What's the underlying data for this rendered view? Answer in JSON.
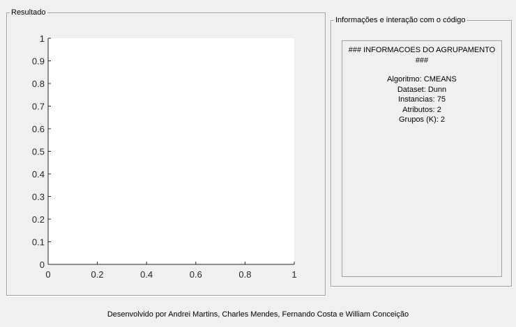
{
  "result_panel": {
    "title": "Resultado"
  },
  "info_panel": {
    "title": "Informações e interação com o código"
  },
  "info_box": {
    "header": "### INFORMACOES DO AGRUPAMENTO ###",
    "lines": [
      "Algoritmo: CMEANS",
      "Dataset: Dunn",
      "Instancias: 75",
      "Atributos: 2",
      "Grupos (K): 2"
    ]
  },
  "footer": "Desenvolvido por Andrei Martins, Charles Mendes, Fernando Costa e William Conceição",
  "chart_data": {
    "type": "scatter",
    "title": "",
    "xlabel": "",
    "ylabel": "",
    "xlim": [
      0,
      1
    ],
    "ylim": [
      0,
      1
    ],
    "x_ticks": [
      "0",
      "0.2",
      "0.4",
      "0.6",
      "0.8",
      "1"
    ],
    "y_ticks": [
      "0",
      "0.1",
      "0.2",
      "0.3",
      "0.4",
      "0.5",
      "0.6",
      "0.7",
      "0.8",
      "0.9",
      "1"
    ],
    "series": [],
    "grid": false
  }
}
